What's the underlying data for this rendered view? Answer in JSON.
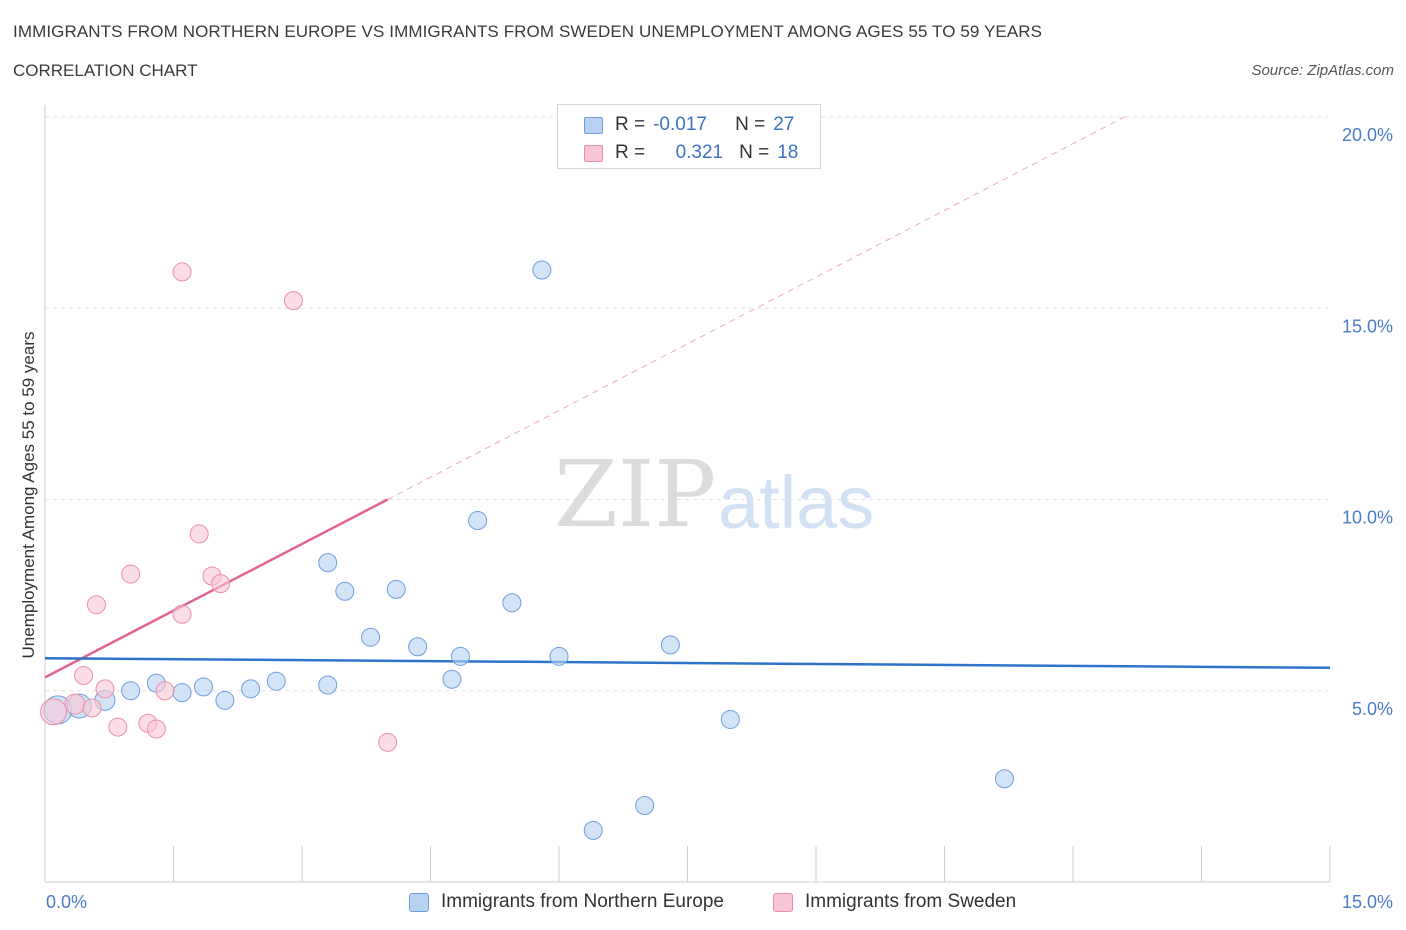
{
  "header": {
    "title": "IMMIGRANTS FROM NORTHERN EUROPE VS IMMIGRANTS FROM SWEDEN UNEMPLOYMENT AMONG AGES 55 TO 59 YEARS",
    "subtitle": "CORRELATION CHART",
    "source": "Source: ZipAtlas.com"
  },
  "legend": {
    "series1": {
      "r_label": "R =",
      "r_value": "-0.017",
      "n_label": "N =",
      "n_value": "27"
    },
    "series2": {
      "r_label": "R =",
      "r_value": "0.321",
      "n_label": "N =",
      "n_value": "18"
    }
  },
  "watermark": {
    "zip": "ZIP",
    "atlas": "atlas"
  },
  "colors": {
    "blue_fill": "#b8d2f2",
    "blue_stroke": "#6d9fde",
    "blue_line": "#2f72c9",
    "pink_fill": "#f8c6d5",
    "pink_stroke": "#ea8faa",
    "pink_line": "#e0648f",
    "grid": "#e2e2e2",
    "axis": "#cfcfcf",
    "tick_text": "#4a7cc9"
  },
  "chart_data": {
    "type": "scatter",
    "title": "IMMIGRANTS FROM NORTHERN EUROPE VS IMMIGRANTS FROM SWEDEN UNEMPLOYMENT AMONG AGES 55 TO 59 YEARS",
    "xlabel": "",
    "ylabel": "Unemployment Among Ages 55 to 59 years",
    "xlim": [
      0,
      15
    ],
    "ylim": [
      0,
      20
    ],
    "x_tick_labels": [
      "0.0%",
      "15.0%"
    ],
    "y_ticks": [
      5,
      10,
      15,
      20
    ],
    "y_tick_labels": [
      "5.0%",
      "10.0%",
      "15.0%",
      "20.0%"
    ],
    "grid": true,
    "legend_position": "top-center",
    "series": [
      {
        "name": "Immigrants from Northern Europe",
        "r": -0.017,
        "n": 27,
        "trend": {
          "x": [
            0,
            15
          ],
          "y": [
            5.85,
            5.6
          ]
        },
        "points": [
          {
            "x": 0.15,
            "y": 4.5,
            "size": 14
          },
          {
            "x": 0.4,
            "y": 4.6,
            "size": 12
          },
          {
            "x": 0.7,
            "y": 4.75,
            "size": 10
          },
          {
            "x": 1.0,
            "y": 5.0,
            "size": 9
          },
          {
            "x": 1.3,
            "y": 5.2,
            "size": 9
          },
          {
            "x": 1.6,
            "y": 4.95,
            "size": 9
          },
          {
            "x": 1.85,
            "y": 5.1,
            "size": 9
          },
          {
            "x": 2.1,
            "y": 4.75,
            "size": 9
          },
          {
            "x": 2.4,
            "y": 5.05,
            "size": 9
          },
          {
            "x": 2.7,
            "y": 5.25,
            "size": 9
          },
          {
            "x": 3.3,
            "y": 5.15,
            "size": 9
          },
          {
            "x": 3.3,
            "y": 8.35,
            "size": 9
          },
          {
            "x": 3.5,
            "y": 7.6,
            "size": 9
          },
          {
            "x": 3.8,
            "y": 6.4,
            "size": 9
          },
          {
            "x": 4.1,
            "y": 7.65,
            "size": 9
          },
          {
            "x": 4.35,
            "y": 6.15,
            "size": 9
          },
          {
            "x": 4.75,
            "y": 5.3,
            "size": 9
          },
          {
            "x": 4.85,
            "y": 5.9,
            "size": 9
          },
          {
            "x": 5.05,
            "y": 9.45,
            "size": 9
          },
          {
            "x": 5.45,
            "y": 7.3,
            "size": 9
          },
          {
            "x": 5.8,
            "y": 16.0,
            "size": 9
          },
          {
            "x": 6.0,
            "y": 5.9,
            "size": 9
          },
          {
            "x": 6.4,
            "y": 1.35,
            "size": 9
          },
          {
            "x": 7.0,
            "y": 2.0,
            "size": 9
          },
          {
            "x": 7.3,
            "y": 6.2,
            "size": 9
          },
          {
            "x": 8.0,
            "y": 4.25,
            "size": 9
          },
          {
            "x": 11.2,
            "y": 2.7,
            "size": 9
          }
        ]
      },
      {
        "name": "Immigrants from Sweden",
        "r": 0.321,
        "n": 18,
        "trend_solid": {
          "x": [
            0,
            4.0
          ],
          "y": [
            5.35,
            10.0
          ]
        },
        "trend_dashed": {
          "x": [
            4.0,
            12.6
          ],
          "y": [
            10.0,
            20.0
          ]
        },
        "points": [
          {
            "x": 0.1,
            "y": 4.45,
            "size": 13
          },
          {
            "x": 0.35,
            "y": 4.65,
            "size": 10
          },
          {
            "x": 0.45,
            "y": 5.4,
            "size": 9
          },
          {
            "x": 0.6,
            "y": 7.25,
            "size": 9
          },
          {
            "x": 0.7,
            "y": 5.05,
            "size": 9
          },
          {
            "x": 0.85,
            "y": 4.05,
            "size": 9
          },
          {
            "x": 1.0,
            "y": 8.05,
            "size": 9
          },
          {
            "x": 1.2,
            "y": 4.15,
            "size": 9
          },
          {
            "x": 1.3,
            "y": 4.0,
            "size": 9
          },
          {
            "x": 1.4,
            "y": 5.0,
            "size": 9
          },
          {
            "x": 1.6,
            "y": 15.95,
            "size": 9
          },
          {
            "x": 1.6,
            "y": 7.0,
            "size": 9
          },
          {
            "x": 1.8,
            "y": 9.1,
            "size": 9
          },
          {
            "x": 1.95,
            "y": 8.0,
            "size": 9
          },
          {
            "x": 2.05,
            "y": 7.8,
            "size": 9
          },
          {
            "x": 2.9,
            "y": 15.2,
            "size": 9
          },
          {
            "x": 4.0,
            "y": 3.65,
            "size": 9
          },
          {
            "x": 0.55,
            "y": 4.55,
            "size": 9
          }
        ]
      }
    ]
  }
}
